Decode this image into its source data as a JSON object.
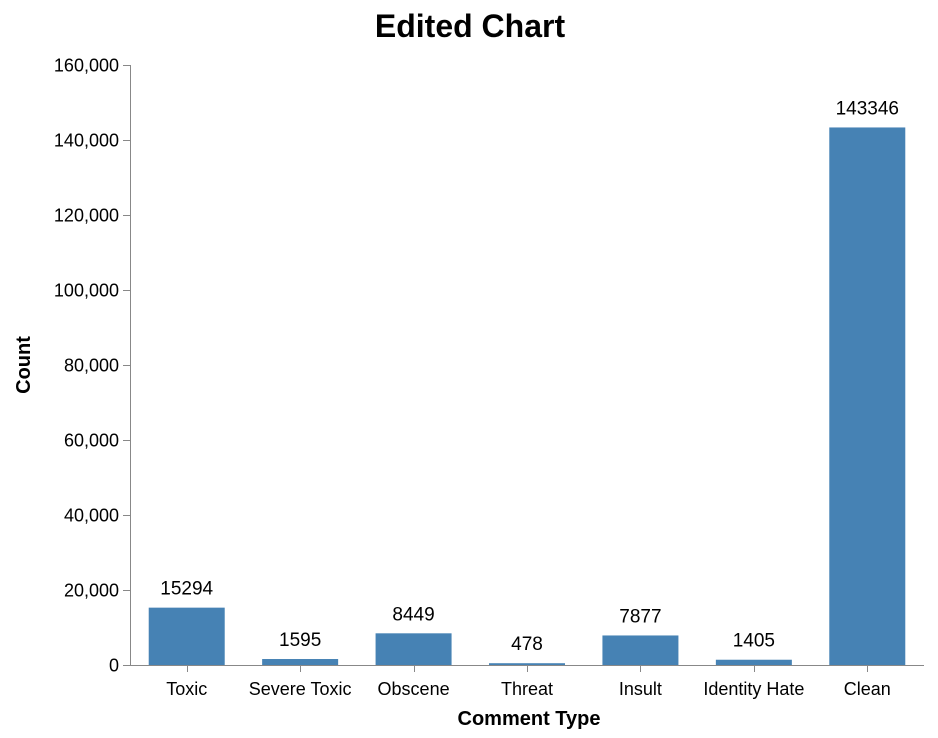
{
  "chart_data": {
    "type": "bar",
    "title": "Edited Chart",
    "xlabel": "Comment Type",
    "ylabel": "Count",
    "categories": [
      "Toxic",
      "Severe Toxic",
      "Obscene",
      "Threat",
      "Insult",
      "Identity Hate",
      "Clean"
    ],
    "values": [
      15294,
      1595,
      8449,
      478,
      7877,
      1405,
      143346
    ],
    "data_labels": [
      "15294",
      "1595",
      "8449",
      "478",
      "7877",
      "1405",
      "143346"
    ],
    "ylim": [
      0,
      160000
    ],
    "yticks": [
      0,
      20000,
      40000,
      60000,
      80000,
      100000,
      120000,
      140000,
      160000
    ],
    "ytick_labels": [
      "0",
      "20,000",
      "40,000",
      "60,000",
      "80,000",
      "100,000",
      "120,000",
      "140,000",
      "160,000"
    ],
    "grid": false,
    "legend": "none",
    "bar_color": "#4682b4"
  }
}
